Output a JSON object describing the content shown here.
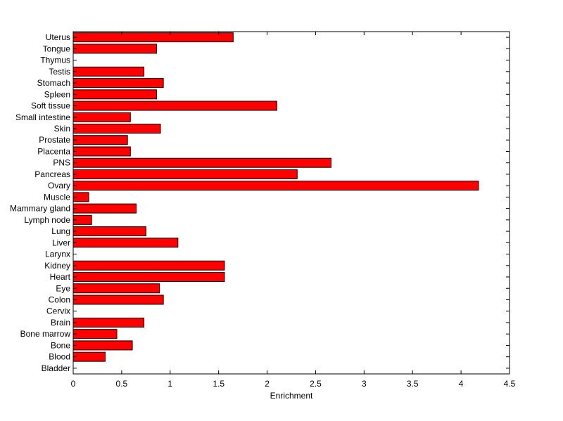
{
  "chart_data": {
    "type": "bar",
    "orientation": "horizontal",
    "xlabel": "Enrichment",
    "ylabel": "",
    "xlim": [
      0,
      4.5
    ],
    "xticks": [
      0,
      0.5,
      1,
      1.5,
      2,
      2.5,
      3,
      3.5,
      4,
      4.5
    ],
    "xtick_labels": [
      "0",
      "0.5",
      "1",
      "1.5",
      "2",
      "2.5",
      "3",
      "3.5",
      "4",
      "4.5"
    ],
    "grid": false,
    "bar_color": "#ff0000",
    "edge_color": "#000000",
    "categories": [
      "Bladder",
      "Blood",
      "Bone",
      "Bone marrow",
      "Brain",
      "Cervix",
      "Colon",
      "Eye",
      "Heart",
      "Kidney",
      "Larynx",
      "Liver",
      "Lung",
      "Lymph node",
      "Mammary gland",
      "Muscle",
      "Ovary",
      "Pancreas",
      "PNS",
      "Placenta",
      "Prostate",
      "Skin",
      "Small intestine",
      "Soft tissue",
      "Spleen",
      "Stomach",
      "Testis",
      "Thymus",
      "Tongue",
      "Uterus"
    ],
    "values": [
      0,
      0.33,
      0.61,
      0.45,
      0.73,
      0,
      0.93,
      0.89,
      1.56,
      1.56,
      0,
      1.08,
      0.75,
      0.19,
      0.65,
      0.16,
      4.18,
      2.31,
      2.66,
      0.59,
      0.56,
      0.9,
      0.59,
      2.1,
      0.86,
      0.93,
      0.73,
      0,
      0.86,
      1.65
    ]
  }
}
